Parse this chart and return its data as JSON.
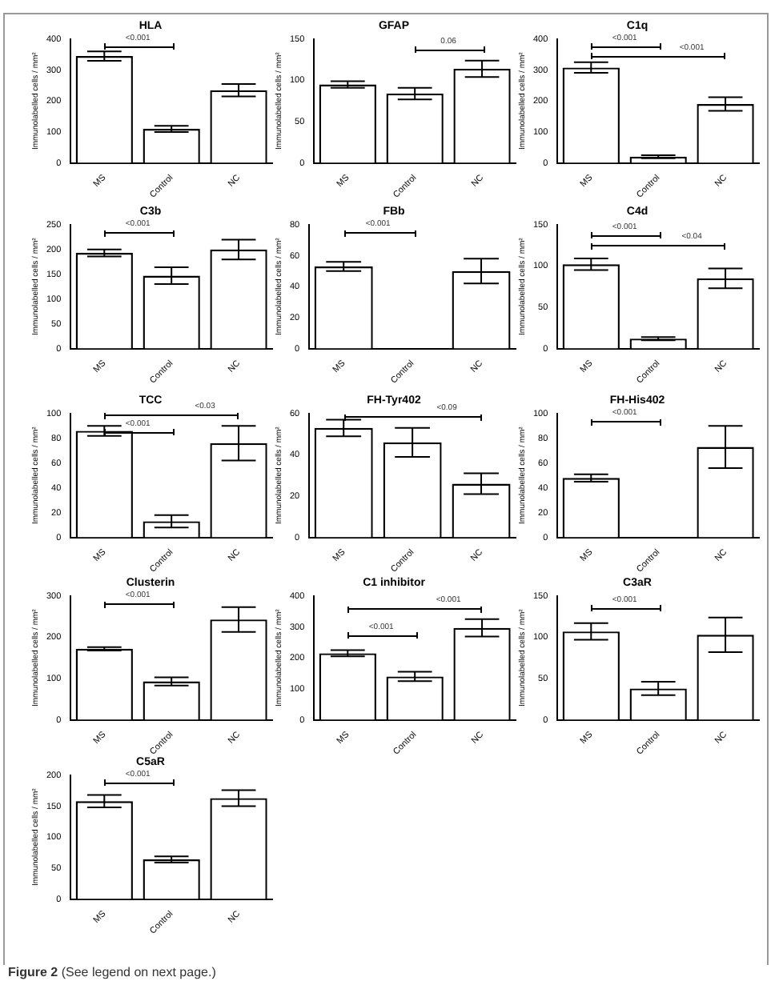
{
  "chart_data": [
    {
      "type": "bar",
      "title": "HLA",
      "ylabel": "Immunolabelled cells / mm²",
      "categories": [
        "MS",
        "Control",
        "NC"
      ],
      "values": [
        345,
        110,
        235
      ],
      "errors": [
        15,
        10,
        20
      ],
      "color": "#ffffff",
      "ylim": [
        0,
        400
      ],
      "yticks": [
        0,
        100,
        200,
        300,
        400
      ],
      "annotations": [
        "<0.001"
      ]
    },
    {
      "type": "bar",
      "title": "GFAP",
      "ylabel": "Immunolabelled cells / mm²",
      "categories": [
        "MS",
        "Control",
        "NC"
      ],
      "values": [
        95,
        84,
        114
      ],
      "errors": [
        4,
        7,
        10
      ],
      "color": "#ffffff",
      "ylim": [
        0,
        150
      ],
      "yticks": [
        0,
        50,
        100,
        150
      ],
      "annotations": [
        "0.06"
      ]
    },
    {
      "type": "bar",
      "title": "C1q",
      "ylabel": "Immunolabelled cells / mm²",
      "categories": [
        "MS",
        "Control",
        "NC"
      ],
      "values": [
        308,
        20,
        190
      ],
      "errors": [
        17,
        5,
        22
      ],
      "color": "#ffffff",
      "ylim": [
        0,
        400
      ],
      "yticks": [
        0,
        100,
        200,
        300,
        400
      ],
      "annotations": [
        "<0.001",
        "<0.001"
      ]
    },
    {
      "type": "bar",
      "title": "C3b",
      "ylabel": "Immunolabelled cells / mm²",
      "categories": [
        "MS",
        "Control",
        "NC"
      ],
      "values": [
        193,
        147,
        200
      ],
      "errors": [
        7,
        17,
        20
      ],
      "color": "#ffffff",
      "ylim": [
        0,
        250
      ],
      "yticks": [
        0,
        50,
        100,
        150,
        200,
        250
      ],
      "annotations": [
        "<0.001"
      ]
    },
    {
      "type": "bar",
      "title": "FBb",
      "ylabel": "Immunolabelled cells / mm²",
      "categories": [
        "MS",
        "Control",
        "NC"
      ],
      "values": [
        53,
        0,
        50
      ],
      "errors": [
        3,
        null,
        8
      ],
      "color": "#ffffff",
      "ylim": [
        0,
        80
      ],
      "yticks": [
        0,
        20,
        40,
        60,
        80
      ],
      "annotations": [
        "<0.001"
      ]
    },
    {
      "type": "bar",
      "title": "C4d",
      "ylabel": "Immunolabelled cells / mm²",
      "categories": [
        "MS",
        "Control",
        "NC"
      ],
      "values": [
        102,
        12,
        85
      ],
      "errors": [
        7,
        2,
        12
      ],
      "color": "#ffffff",
      "ylim": [
        0,
        150
      ],
      "yticks": [
        0,
        50,
        100,
        150
      ],
      "annotations": [
        "<0.001",
        "<0.04"
      ]
    },
    {
      "type": "bar",
      "title": "TCC",
      "ylabel": "Immunolabelled cells / mm²",
      "categories": [
        "MS",
        "Control",
        "NC"
      ],
      "values": [
        86,
        13,
        76
      ],
      "errors": [
        4,
        5,
        14
      ],
      "color": "#ffffff",
      "ylim": [
        0,
        100
      ],
      "yticks": [
        0,
        20,
        40,
        60,
        80,
        100
      ],
      "annotations": [
        "<0.001",
        "<0.03"
      ]
    },
    {
      "type": "bar",
      "title": "FH-Tyr402",
      "ylabel": "Immunolabelled cells / mm²",
      "categories": [
        "MS",
        "Control",
        "NC"
      ],
      "values": [
        53,
        46,
        26
      ],
      "errors": [
        4,
        7,
        5
      ],
      "color": "#ffffff",
      "ylim": [
        0,
        60
      ],
      "yticks": [
        0,
        20,
        40,
        60
      ],
      "annotations": [
        "<0.09"
      ]
    },
    {
      "type": "bar",
      "title": "FH-His402",
      "ylabel": "Immunolabelled cells / mm²",
      "categories": [
        "MS",
        "Control",
        "NC"
      ],
      "values": [
        48,
        0,
        73
      ],
      "errors": [
        3,
        null,
        17
      ],
      "color": "#ffffff",
      "ylim": [
        0,
        100
      ],
      "yticks": [
        0,
        20,
        40,
        60,
        80,
        100
      ],
      "annotations": [
        "<0.001"
      ]
    },
    {
      "type": "bar",
      "title": "Clusterin",
      "ylabel": "Immunolabelled cells / mm²",
      "categories": [
        "MS",
        "Control",
        "NC"
      ],
      "values": [
        172,
        93,
        243
      ],
      "errors": [
        4,
        10,
        30
      ],
      "color": "#ffffff",
      "ylim": [
        0,
        300
      ],
      "yticks": [
        0,
        100,
        200,
        300
      ],
      "annotations": [
        "<0.001"
      ]
    },
    {
      "type": "bar",
      "title": "C1 inhibitor",
      "ylabel": "Immunolabelled cells / mm²",
      "categories": [
        "MS",
        "Control",
        "NC"
      ],
      "values": [
        215,
        140,
        297
      ],
      "errors": [
        10,
        15,
        28
      ],
      "color": "#ffffff",
      "ylim": [
        0,
        400
      ],
      "yticks": [
        0,
        100,
        200,
        300,
        400
      ],
      "annotations": [
        "<0.001",
        "<0.001"
      ]
    },
    {
      "type": "bar",
      "title": "C3aR",
      "ylabel": "Immunolabelled cells / mm²",
      "categories": [
        "MS",
        "Control",
        "NC"
      ],
      "values": [
        107,
        38,
        103
      ],
      "errors": [
        10,
        8,
        21
      ],
      "color": "#ffffff",
      "ylim": [
        0,
        150
      ],
      "yticks": [
        0,
        50,
        100,
        150
      ],
      "annotations": [
        "<0.001"
      ]
    },
    {
      "type": "bar",
      "title": "C5aR",
      "ylabel": "Immunolabelled cells / mm²",
      "categories": [
        "MS",
        "Control",
        "NC"
      ],
      "values": [
        158,
        64,
        163
      ],
      "errors": [
        10,
        5,
        13
      ],
      "color": "#ffffff",
      "ylim": [
        0,
        200
      ],
      "yticks": [
        0,
        50,
        100,
        150,
        200
      ],
      "annotations": [
        "<0.001"
      ]
    },
    {
      "type": "other",
      "title": "Figure 2",
      "subtitle": "(See legend on next page.)"
    }
  ]
}
